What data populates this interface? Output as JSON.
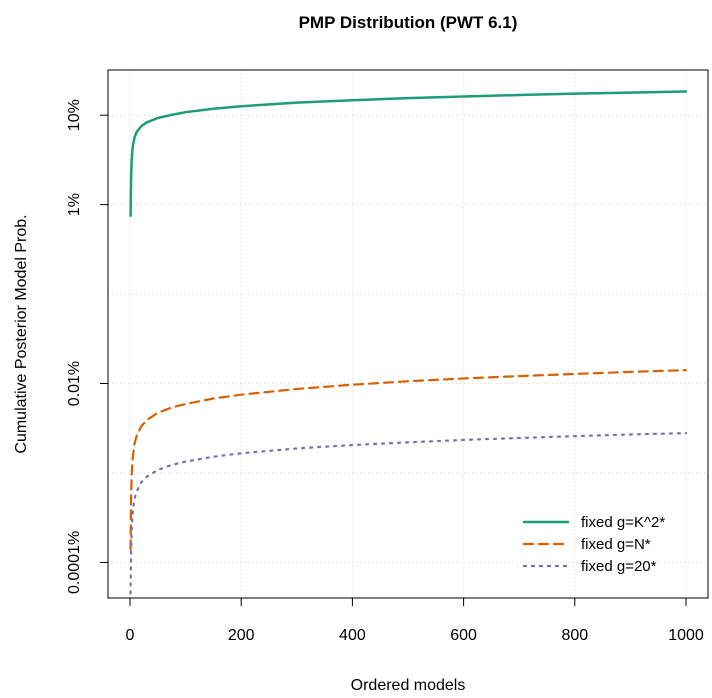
{
  "chart_data": {
    "type": "line",
    "title": "PMP Distribution (PWT 6.1)",
    "xlabel": "Ordered models",
    "ylabel": "Cumulative Posterior Model Prob.",
    "xlim": [
      0,
      1000
    ],
    "xticks": [
      0,
      200,
      400,
      600,
      800,
      1000
    ],
    "y_scale": "log",
    "ylim": [
      4e-07,
      0.32
    ],
    "yticks": [
      {
        "value": 1e-06,
        "label": "0.0001%"
      },
      {
        "value": 0.0001,
        "label": "0.01%"
      },
      {
        "value": 0.01,
        "label": "1%"
      },
      {
        "value": 0.1,
        "label": "10%"
      }
    ],
    "grid": true,
    "legend_position": "bottom-right",
    "series": [
      {
        "name": "fixed g=K^2*",
        "color": "#1b9e77",
        "linestyle": "solid",
        "x": [
          1,
          2,
          3,
          5,
          8,
          12,
          20,
          30,
          50,
          75,
          100,
          150,
          200,
          300,
          400,
          500,
          600,
          700,
          800,
          900,
          1000
        ],
        "y": [
          0.0075,
          0.02,
          0.032,
          0.045,
          0.056,
          0.065,
          0.075,
          0.083,
          0.093,
          0.101,
          0.108,
          0.118,
          0.126,
          0.138,
          0.147,
          0.155,
          0.162,
          0.168,
          0.174,
          0.179,
          0.184
        ]
      },
      {
        "name": "fixed g=N*",
        "color": "#d95f02",
        "linestyle": "dashed",
        "x": [
          1,
          2,
          3,
          5,
          8,
          12,
          20,
          30,
          50,
          75,
          100,
          150,
          200,
          300,
          400,
          500,
          600,
          700,
          800,
          900,
          1000
        ],
        "y": [
          1.4e-06,
          5.5e-06,
          9.5e-06,
          1.5e-05,
          2.1e-05,
          2.6e-05,
          3.3e-05,
          3.9e-05,
          4.7e-05,
          5.4e-05,
          5.9e-05,
          6.8e-05,
          7.5e-05,
          8.7e-05,
          9.7e-05,
          0.000106,
          0.000114,
          0.000121,
          0.000128,
          0.000135,
          0.000141
        ]
      },
      {
        "name": "fixed g=20*",
        "color": "#7570b3",
        "linestyle": "dotted",
        "x": [
          1,
          2,
          3,
          5,
          8,
          12,
          20,
          30,
          50,
          75,
          100,
          150,
          200,
          300,
          400,
          500,
          600,
          700,
          800,
          900,
          1000
        ],
        "y": [
          4.5e-07,
          1.3e-06,
          2.3e-06,
          3.7e-06,
          5.1e-06,
          6.2e-06,
          7.8e-06,
          9.1e-06,
          1.08e-05,
          1.23e-05,
          1.34e-05,
          1.52e-05,
          1.66e-05,
          1.88e-05,
          2.05e-05,
          2.2e-05,
          2.34e-05,
          2.46e-05,
          2.58e-05,
          2.69e-05,
          2.79e-05
        ]
      }
    ]
  }
}
